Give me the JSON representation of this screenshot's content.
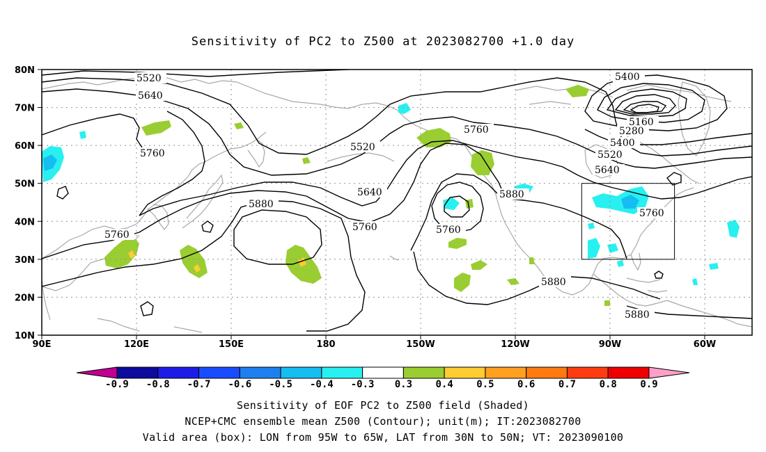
{
  "title": "Sensitivity of PC2 to Z500 at 2023082700 +1.0 day",
  "lat_labels": [
    "80N",
    "70N",
    "60N",
    "50N",
    "40N",
    "30N",
    "20N",
    "10N"
  ],
  "lon_labels": [
    "90E",
    "120E",
    "150E",
    "180",
    "150W",
    "120W",
    "90W",
    "60W"
  ],
  "contour_labels": [
    "5520",
    "5640",
    "5760",
    "5520",
    "5760",
    "5640",
    "5880",
    "5760",
    "5760",
    "5880",
    "5760",
    "5880",
    "5400",
    "5160",
    "5280",
    "5400",
    "5520",
    "5640",
    "5760",
    "5880"
  ],
  "colorbar": {
    "labels": [
      "-0.9",
      "-0.8",
      "-0.7",
      "-0.6",
      "-0.5",
      "-0.4",
      "-0.3",
      "0.3",
      "0.4",
      "0.5",
      "0.6",
      "0.7",
      "0.8",
      "0.9"
    ],
    "colors": [
      "#0b0b9e",
      "#1c1ce6",
      "#1a4cff",
      "#1e7ff0",
      "#14bef0",
      "#28f0f0",
      "#ffffff",
      "#9acd32",
      "#ffcc33",
      "#ffa020",
      "#ff7a10",
      "#ff3c10",
      "#ee0000"
    ],
    "low_end_color": "#c00090",
    "high_end_color": "#ffa0c8"
  },
  "valid_box": {
    "lon_from": "95W",
    "lon_to": "65W",
    "lat_from": "30N",
    "lat_to": "50N"
  },
  "captions": [
    "Sensitivity of EOF PC2 to Z500 field (Shaded)",
    "NCEP+CMC ensemble mean Z500 (Contour); unit(m); IT:2023082700",
    "Valid area (box): LON from 95W to 65W, LAT from 30N to 50N; VT: 2023090100"
  ]
}
